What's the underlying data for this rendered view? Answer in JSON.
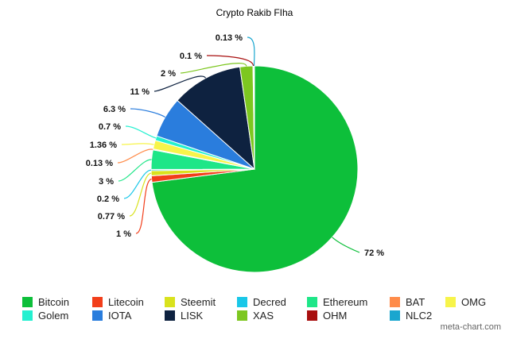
{
  "chart_data": {
    "type": "pie",
    "title": "Crypto Rakib FIha",
    "slices": [
      {
        "label": "Bitcoin",
        "value": 72,
        "display": "72 %",
        "color": "#0dbf3a"
      },
      {
        "label": "Litecoin",
        "value": 1,
        "display": "1 %",
        "color": "#f23e1a"
      },
      {
        "label": "Steemit",
        "value": 0.77,
        "display": "0.77 %",
        "color": "#d9e21d"
      },
      {
        "label": "Decred",
        "value": 0.2,
        "display": "0.2 %",
        "color": "#19c7e8"
      },
      {
        "label": "Ethereum",
        "value": 3,
        "display": "3 %",
        "color": "#1ee688"
      },
      {
        "label": "BAT",
        "value": 0.13,
        "display": "0.13 %",
        "color": "#ff8c4a"
      },
      {
        "label": "OMG",
        "value": 1.36,
        "display": "1.36 %",
        "color": "#f7f44a"
      },
      {
        "label": "Golem",
        "value": 0.7,
        "display": "0.7 %",
        "color": "#24f0d0"
      },
      {
        "label": "IOTA",
        "value": 6.3,
        "display": "6.3 %",
        "color": "#2a7ddd"
      },
      {
        "label": "LISK",
        "value": 11,
        "display": "11 %",
        "color": "#0e2240"
      },
      {
        "label": "XAS",
        "value": 2,
        "display": "2 %",
        "color": "#7dc720"
      },
      {
        "label": "OHM",
        "value": 0.1,
        "display": "0.1 %",
        "color": "#a80f0f"
      },
      {
        "label": "NLC2",
        "value": 0.13,
        "display": "0.13 %",
        "color": "#1aa6cf"
      }
    ],
    "legend_position": "bottom"
  },
  "watermark": "meta-chart.com"
}
